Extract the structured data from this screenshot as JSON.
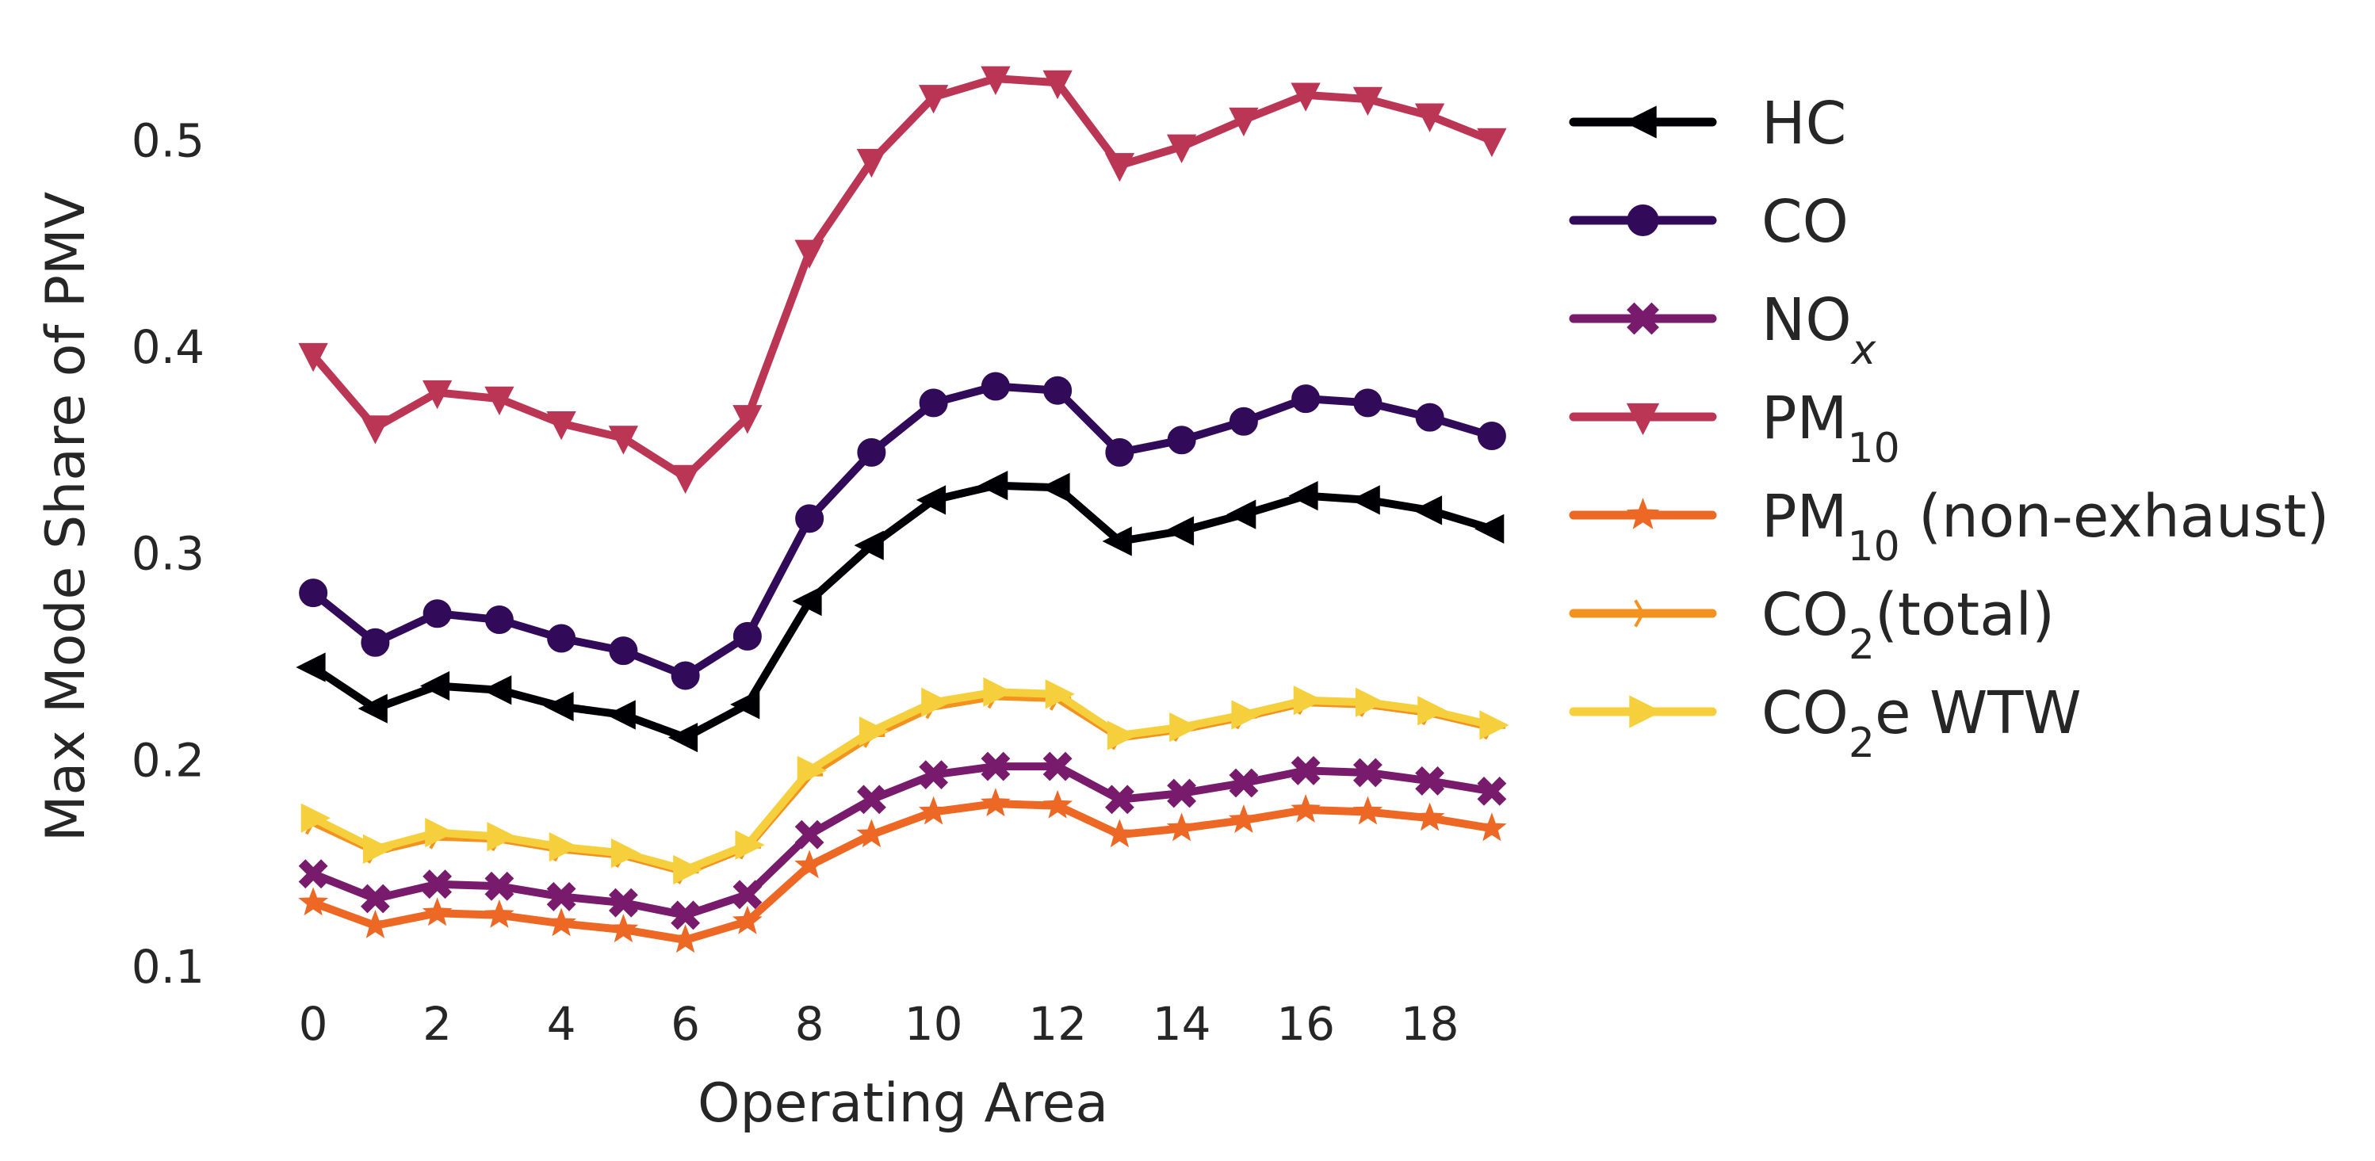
{
  "chart_data": {
    "type": "line",
    "title": "",
    "xlabel": "Operating Area",
    "ylabel": "Max Mode Share of PMV",
    "xlim": [
      -0.5,
      19.5
    ],
    "ylim": [
      0.1,
      0.54
    ],
    "xticks": [
      0,
      2,
      4,
      6,
      8,
      10,
      12,
      14,
      16,
      18
    ],
    "yticks": [
      0.1,
      0.2,
      0.3,
      0.4,
      0.5
    ],
    "xtick_labels": [
      "0",
      "2",
      "4",
      "6",
      "8",
      "10",
      "12",
      "14",
      "16",
      "18"
    ],
    "ytick_labels": [
      "0.1",
      "0.2",
      "0.3",
      "0.4",
      "0.5"
    ],
    "grid": false,
    "legend_position": "right",
    "x": [
      0,
      1,
      2,
      3,
      4,
      5,
      6,
      7,
      8,
      9,
      10,
      11,
      12,
      13,
      14,
      15,
      16,
      17,
      18,
      19
    ],
    "series": [
      {
        "name": "HC",
        "name_main": "HC",
        "name_sub": "",
        "name_suffix": "",
        "color": "#000004",
        "marker": "triangle-left",
        "values": [
          0.245,
          0.225,
          0.236,
          0.234,
          0.226,
          0.222,
          0.211,
          0.227,
          0.277,
          0.304,
          0.326,
          0.333,
          0.332,
          0.306,
          0.311,
          0.319,
          0.328,
          0.326,
          0.321,
          0.312
        ]
      },
      {
        "name": "CO",
        "name_main": "CO",
        "name_sub": "",
        "name_suffix": "",
        "color": "#320a5a",
        "marker": "circle",
        "values": [
          0.281,
          0.257,
          0.271,
          0.268,
          0.259,
          0.253,
          0.241,
          0.26,
          0.317,
          0.349,
          0.373,
          0.381,
          0.379,
          0.349,
          0.355,
          0.364,
          0.375,
          0.373,
          0.366,
          0.357
        ]
      },
      {
        "name": "NOx",
        "name_main": "NO",
        "name_sub": "x",
        "name_suffix": "",
        "color": "#781b6c",
        "marker": "x-filled",
        "values": [
          0.145,
          0.133,
          0.14,
          0.139,
          0.134,
          0.131,
          0.125,
          0.135,
          0.164,
          0.181,
          0.193,
          0.197,
          0.197,
          0.181,
          0.184,
          0.189,
          0.195,
          0.194,
          0.19,
          0.185
        ]
      },
      {
        "name": "PM10",
        "name_main": "PM",
        "name_sub": "10",
        "name_suffix": "",
        "color": "#bb3654",
        "marker": "triangle-down",
        "values": [
          0.396,
          0.361,
          0.378,
          0.375,
          0.363,
          0.356,
          0.337,
          0.366,
          0.446,
          0.49,
          0.521,
          0.53,
          0.528,
          0.488,
          0.497,
          0.51,
          0.522,
          0.52,
          0.512,
          0.5
        ]
      },
      {
        "name": "PM10 (non-exhaust)",
        "name_main": "PM",
        "name_sub": "10",
        "name_suffix": " (non-exhaust)",
        "color": "#ec6824",
        "marker": "star",
        "values": [
          0.131,
          0.12,
          0.126,
          0.125,
          0.121,
          0.118,
          0.113,
          0.122,
          0.149,
          0.164,
          0.175,
          0.179,
          0.178,
          0.164,
          0.167,
          0.171,
          0.176,
          0.175,
          0.172,
          0.167
        ]
      },
      {
        "name": "CO2(total)",
        "name_main": "CO",
        "name_sub": "2",
        "name_suffix": "(total)",
        "color": "#f3921f",
        "marker": "tri-right",
        "values": [
          0.17,
          0.156,
          0.163,
          0.162,
          0.157,
          0.154,
          0.146,
          0.158,
          0.193,
          0.212,
          0.226,
          0.231,
          0.23,
          0.211,
          0.215,
          0.221,
          0.228,
          0.227,
          0.223,
          0.216
        ]
      },
      {
        "name": "CO2e WTW",
        "name_main": "CO",
        "name_sub": "2",
        "name_suffix": "e WTW",
        "color": "#f6d03c",
        "marker": "triangle-right",
        "values": [
          0.172,
          0.157,
          0.165,
          0.163,
          0.158,
          0.155,
          0.147,
          0.159,
          0.195,
          0.214,
          0.228,
          0.233,
          0.232,
          0.212,
          0.216,
          0.222,
          0.229,
          0.228,
          0.224,
          0.217
        ]
      }
    ]
  }
}
